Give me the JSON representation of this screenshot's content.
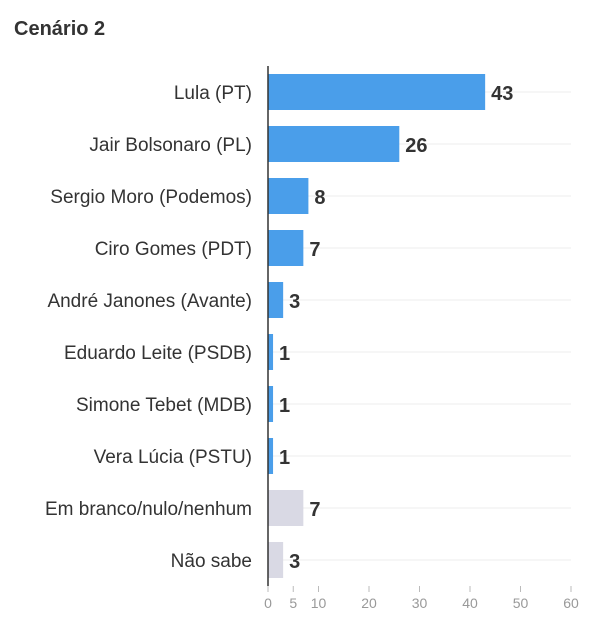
{
  "chart_data": {
    "type": "bar",
    "orientation": "horizontal",
    "title": "Cenário 2",
    "categories": [
      "Lula (PT)",
      "Jair Bolsonaro (PL)",
      "Sergio Moro (Podemos)",
      "Ciro Gomes (PDT)",
      "André Janones (Avante)",
      "Eduardo Leite (PSDB)",
      "Simone Tebet (MDB)",
      "Vera Lúcia (PSTU)",
      "Em branco/nulo/nenhum",
      "Não sabe"
    ],
    "values": [
      43,
      26,
      8,
      7,
      3,
      1,
      1,
      1,
      7,
      3
    ],
    "bar_colors": [
      "#4a9eea",
      "#4a9eea",
      "#4a9eea",
      "#4a9eea",
      "#4a9eea",
      "#4a9eea",
      "#4a9eea",
      "#4a9eea",
      "#d9d9e4",
      "#d9d9e4"
    ],
    "xlim": [
      0,
      60
    ],
    "xticks": [
      0,
      5,
      10,
      20,
      30,
      40,
      50,
      60
    ],
    "grid": "on",
    "xlabel": "",
    "ylabel": ""
  }
}
